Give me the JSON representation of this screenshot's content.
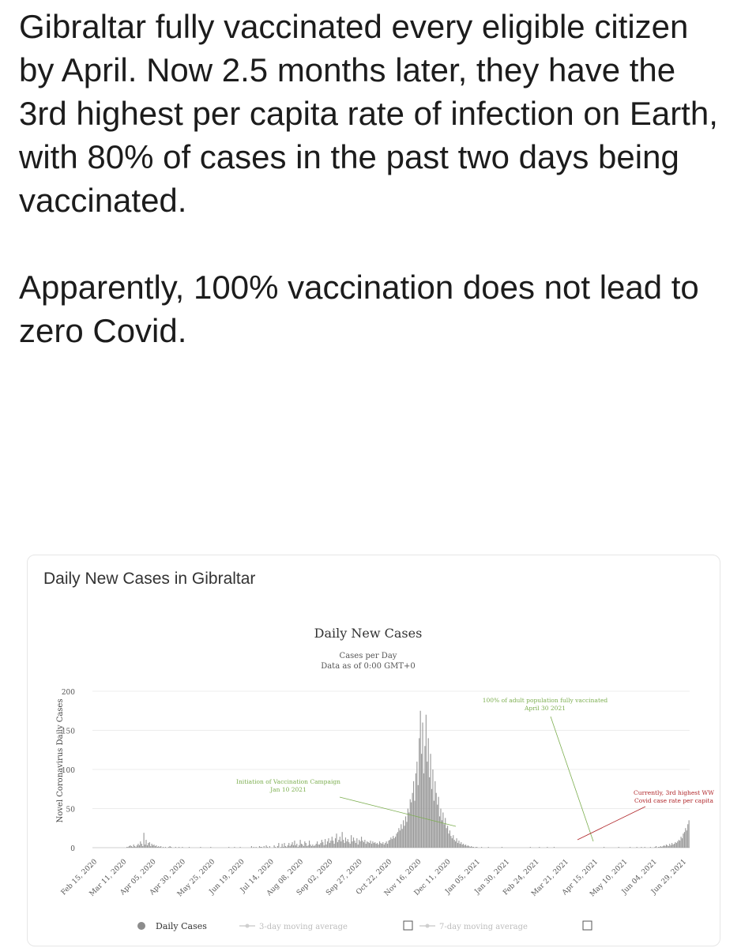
{
  "post": {
    "paragraph_1": "Gibraltar fully vaccinated every eligible citizen by April.  Now 2.5 months later, they have the 3rd highest per capita rate of infection on Earth, with 80% of cases in the past two days being vaccinated.",
    "paragraph_2": "Apparently, 100% vaccination does not lead to zero Covid."
  },
  "card": {
    "title": "Daily New Cases in Gibraltar"
  },
  "chart_data": {
    "type": "bar",
    "title": "Daily New Cases",
    "subtitle_1": "Cases per Day",
    "subtitle_2": "Data as of 0:00 GMT+0",
    "ylabel": "Novel Coronavirus Daily Cases",
    "xlabel": "",
    "ylim": [
      0,
      200
    ],
    "y_ticks": [
      "0",
      "50",
      "100",
      "150",
      "200"
    ],
    "grid": true,
    "x_ticks": [
      "Feb 15, 2020",
      "Mar 11, 2020",
      "Apr 05, 2020",
      "Apr 30, 2020",
      "May 25, 2020",
      "Jun 19, 2020",
      "Jul 14, 2020",
      "Aug 08, 2020",
      "Sep 02, 2020",
      "Sep 27, 2020",
      "Oct 22, 2020",
      "Nov 16, 2020",
      "Dec 11, 2020",
      "Jan 05, 2021",
      "Jan 30, 2021",
      "Feb 24, 2021",
      "Mar 21, 2021",
      "Apr 15, 2021",
      "May 10, 2021",
      "Jun 04, 2021",
      "Jun 29, 2021"
    ],
    "series": [
      {
        "name": "Daily Cases",
        "color": "#9a9a9a",
        "values": [
          0,
          0,
          0,
          0,
          0,
          0,
          0,
          0,
          0,
          0,
          0,
          0,
          0,
          0,
          0,
          0,
          0,
          0,
          0,
          0,
          0,
          0,
          0,
          0,
          0,
          0,
          0,
          0,
          0,
          0,
          1,
          1,
          2,
          3,
          2,
          1,
          4,
          2,
          1,
          3,
          5,
          3,
          8,
          5,
          2,
          19,
          4,
          10,
          3,
          6,
          7,
          2,
          5,
          3,
          4,
          2,
          3,
          1,
          2,
          1,
          2,
          0,
          1,
          0,
          1,
          0,
          0,
          1,
          2,
          1,
          0,
          0,
          0,
          1,
          0,
          0,
          1,
          0,
          0,
          1,
          0,
          0,
          0,
          0,
          0,
          1,
          0,
          0,
          0,
          0,
          0,
          0,
          0,
          0,
          0,
          1,
          0,
          0,
          0,
          0,
          0,
          0,
          0,
          0,
          1,
          0,
          0,
          0,
          0,
          0,
          0,
          0,
          0,
          0,
          0,
          0,
          0,
          0,
          0,
          0,
          1,
          0,
          0,
          0,
          0,
          1,
          0,
          0,
          0,
          0,
          1,
          0,
          0,
          0,
          0,
          0,
          0,
          0,
          0,
          0,
          2,
          0,
          1,
          0,
          1,
          0,
          0,
          2,
          1,
          1,
          0,
          2,
          0,
          3,
          1,
          0,
          2,
          0,
          0,
          0,
          3,
          1,
          0,
          2,
          6,
          0,
          1,
          5,
          1,
          6,
          2,
          1,
          3,
          6,
          2,
          4,
          7,
          3,
          9,
          3,
          5,
          1,
          3,
          10,
          5,
          4,
          2,
          8,
          6,
          2,
          3,
          9,
          4,
          2,
          4,
          2,
          3,
          5,
          8,
          4,
          4,
          6,
          10,
          7,
          3,
          11,
          4,
          8,
          12,
          6,
          9,
          14,
          9,
          5,
          12,
          18,
          7,
          10,
          14,
          8,
          20,
          10,
          6,
          13,
          8,
          11,
          7,
          5,
          16,
          8,
          13,
          9,
          6,
          12,
          4,
          10,
          8,
          14,
          9,
          7,
          10,
          5,
          8,
          7,
          6,
          9,
          5,
          8,
          6,
          7,
          5,
          6,
          4,
          8,
          6,
          5,
          7,
          4,
          6,
          8,
          5,
          9,
          10,
          13,
          11,
          15,
          12,
          14,
          18,
          20,
          25,
          22,
          30,
          24,
          35,
          28,
          40,
          33,
          50,
          45,
          62,
          58,
          70,
          85,
          60,
          95,
          110,
          80,
          140,
          175,
          120,
          160,
          95,
          130,
          170,
          110,
          140,
          90,
          120,
          75,
          100,
          60,
          85,
          70,
          55,
          65,
          40,
          50,
          35,
          45,
          30,
          38,
          25,
          28,
          18,
          22,
          15,
          12,
          16,
          10,
          8,
          12,
          6,
          9,
          5,
          7,
          4,
          5,
          3,
          4,
          2,
          3,
          2,
          1,
          2,
          1,
          1,
          0,
          1,
          1,
          0,
          0,
          0,
          1,
          0,
          0,
          0,
          0,
          0,
          1,
          0,
          0,
          0,
          0,
          0,
          0,
          0,
          0,
          0,
          0,
          0,
          1,
          0,
          0,
          0,
          0,
          0,
          0,
          0,
          0,
          0,
          0,
          0,
          0,
          0,
          0,
          0,
          0,
          0,
          0,
          0,
          0,
          0,
          0,
          0,
          0,
          1,
          0,
          0,
          0,
          0,
          0,
          0,
          0,
          1,
          0,
          0,
          0,
          0,
          0,
          0,
          1,
          0,
          0,
          0,
          0,
          0,
          1,
          0,
          0,
          0,
          0,
          0,
          0,
          0,
          0,
          0,
          0,
          0,
          0,
          0,
          0,
          0,
          0,
          0,
          0,
          0,
          0,
          0,
          0,
          0,
          0,
          0,
          0,
          0,
          0,
          0,
          0,
          0,
          0,
          0,
          0,
          0,
          0,
          0,
          0,
          0,
          0,
          0,
          0,
          0,
          1,
          0,
          0,
          0,
          0,
          0,
          0,
          0,
          0,
          0,
          0,
          0,
          0,
          1,
          0,
          0,
          0,
          0,
          0,
          0,
          0,
          0,
          0,
          1,
          0,
          0,
          0,
          0,
          0,
          1,
          0,
          0,
          0,
          1,
          0,
          0,
          1,
          0,
          0,
          0,
          0,
          1,
          0,
          0,
          0,
          1,
          2,
          0,
          1,
          1,
          2,
          1,
          2,
          3,
          2,
          4,
          3,
          2,
          5,
          3,
          6,
          4,
          5,
          7,
          6,
          8,
          10,
          9,
          14,
          12,
          18,
          20,
          25,
          22,
          30,
          35
        ]
      }
    ],
    "legend_position": "bottom",
    "legend": [
      {
        "label": "Daily Cases",
        "marker": "dot",
        "color": "#8c8c8c"
      },
      {
        "label": "3-day moving average",
        "marker": "line",
        "color": "#cfcfcf"
      },
      {
        "label": "7-day moving average",
        "marker": "line",
        "color": "#cfcfcf"
      }
    ],
    "annotations": [
      {
        "lines": [
          "Initiation of Vaccination Campaign",
          "Jan 10 2021"
        ],
        "color": "#7cae4f"
      },
      {
        "lines": [
          "100% of adult population fully vaccinated",
          "April 30 2021"
        ],
        "color": "#7cae4f"
      },
      {
        "lines": [
          "Currently, 3rd highest WW",
          "Covid case rate per capita"
        ],
        "color": "#b0262a"
      }
    ]
  }
}
